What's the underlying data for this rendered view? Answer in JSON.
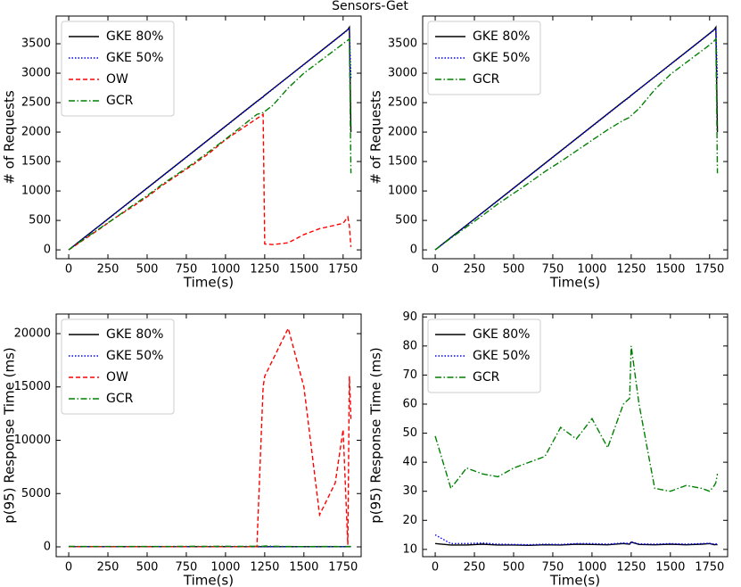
{
  "title": "Sensors-Get",
  "chart_data": [
    {
      "type": "line",
      "xlabel": "Time(s)",
      "ylabel": "# of Requests",
      "legend": "upper left",
      "x": [
        0,
        100,
        200,
        300,
        400,
        500,
        600,
        700,
        800,
        900,
        1000,
        1100,
        1200,
        1240,
        1250,
        1300,
        1400,
        1500,
        1600,
        1700,
        1750,
        1780,
        1790,
        1800
      ],
      "xlim": [
        -80,
        1865
      ],
      "ylim": [
        -150,
        3970
      ],
      "xticks": [
        0,
        250,
        500,
        750,
        1000,
        1250,
        1500,
        1750
      ],
      "yticks": [
        0,
        500,
        1000,
        1500,
        2000,
        2500,
        3000,
        3500
      ],
      "series": [
        {
          "name": "GKE 80%",
          "color": "#000000",
          "dash": "solid",
          "values": [
            0,
            210,
            420,
            630,
            840,
            1050,
            1260,
            1470,
            1680,
            1890,
            2100,
            2310,
            2520,
            2600,
            2625,
            2730,
            2940,
            3150,
            3360,
            3570,
            3675,
            3740,
            3780,
            2000
          ]
        },
        {
          "name": "GKE 50%",
          "color": "#0000ff",
          "dash": "dotted",
          "values": [
            0,
            208,
            416,
            625,
            835,
            1045,
            1255,
            1465,
            1675,
            1885,
            2095,
            2305,
            2515,
            2595,
            2620,
            2725,
            2935,
            3145,
            3355,
            3565,
            3670,
            3735,
            3760,
            2900
          ]
        },
        {
          "name": "OW",
          "color": "#ff0000",
          "dash": "dashed",
          "values": [
            0,
            180,
            360,
            550,
            720,
            900,
            1100,
            1280,
            1460,
            1650,
            1870,
            2050,
            2230,
            2300,
            100,
            90,
            120,
            260,
            360,
            420,
            450,
            560,
            400,
            50
          ]
        },
        {
          "name": "GCR",
          "color": "#008000",
          "dash": "dashdot",
          "values": [
            0,
            190,
            370,
            550,
            740,
            920,
            1120,
            1300,
            1480,
            1680,
            1880,
            2090,
            2300,
            2330,
            2350,
            2450,
            2750,
            3000,
            3200,
            3400,
            3500,
            3560,
            3580,
            1300
          ]
        }
      ]
    },
    {
      "type": "line",
      "xlabel": "Time(s)",
      "ylabel": "# of Requests",
      "legend": "upper left",
      "x": [
        0,
        100,
        200,
        300,
        400,
        500,
        600,
        700,
        800,
        900,
        1000,
        1100,
        1200,
        1240,
        1250,
        1300,
        1400,
        1500,
        1600,
        1700,
        1750,
        1780,
        1790,
        1800
      ],
      "xlim": [
        -80,
        1865
      ],
      "ylim": [
        -150,
        3970
      ],
      "xticks": [
        0,
        250,
        500,
        750,
        1000,
        1250,
        1500,
        1750
      ],
      "yticks": [
        0,
        500,
        1000,
        1500,
        2000,
        2500,
        3000,
        3500
      ],
      "series": [
        {
          "name": "GKE 80%",
          "color": "#000000",
          "dash": "solid",
          "values": [
            0,
            210,
            420,
            630,
            840,
            1050,
            1260,
            1470,
            1680,
            1890,
            2100,
            2310,
            2520,
            2600,
            2625,
            2730,
            2940,
            3150,
            3360,
            3570,
            3675,
            3740,
            3780,
            2000
          ]
        },
        {
          "name": "GKE 50%",
          "color": "#0000ff",
          "dash": "dotted",
          "values": [
            0,
            208,
            416,
            625,
            835,
            1045,
            1255,
            1465,
            1675,
            1885,
            2095,
            2305,
            2515,
            2595,
            2620,
            2725,
            2935,
            3145,
            3355,
            3565,
            3670,
            3735,
            3760,
            2900
          ]
        },
        {
          "name": "GCR",
          "color": "#008000",
          "dash": "dashdot",
          "values": [
            0,
            200,
            390,
            580,
            780,
            960,
            1140,
            1330,
            1500,
            1680,
            1860,
            2040,
            2200,
            2250,
            2280,
            2400,
            2720,
            2980,
            3180,
            3380,
            3480,
            3550,
            3580,
            1300
          ]
        }
      ]
    },
    {
      "type": "line",
      "xlabel": "Time(s)",
      "ylabel": "p(95) Response Time (ms)",
      "legend": "upper left",
      "x": [
        0,
        100,
        200,
        300,
        400,
        500,
        600,
        700,
        800,
        900,
        1000,
        1100,
        1200,
        1240,
        1250,
        1300,
        1400,
        1500,
        1600,
        1700,
        1750,
        1780,
        1790,
        1800
      ],
      "xlim": [
        -80,
        1865
      ],
      "ylim": [
        -920,
        21840
      ],
      "xticks": [
        0,
        250,
        500,
        750,
        1000,
        1250,
        1500,
        1750
      ],
      "yticks": [
        0,
        5000,
        10000,
        15000,
        20000
      ],
      "series": [
        {
          "name": "GKE 80%",
          "color": "#000000",
          "dash": "solid",
          "values": [
            12,
            12,
            12,
            12,
            12,
            12,
            12,
            12,
            12,
            12,
            12,
            12,
            12,
            12,
            12,
            12,
            12,
            12,
            12,
            12,
            12,
            12,
            12,
            12
          ]
        },
        {
          "name": "GKE 50%",
          "color": "#0000ff",
          "dash": "dotted",
          "values": [
            14,
            12,
            12,
            12,
            12,
            12,
            12,
            12,
            12,
            12,
            12,
            12,
            12,
            12,
            12,
            12,
            12,
            12,
            12,
            12,
            12,
            12,
            12,
            12
          ]
        },
        {
          "name": "OW",
          "color": "#ff0000",
          "dash": "dashed",
          "values": [
            20,
            20,
            20,
            20,
            20,
            20,
            20,
            20,
            20,
            20,
            20,
            20,
            20,
            15000,
            16000,
            17500,
            20500,
            15000,
            3000,
            6000,
            11000,
            200,
            16000,
            12000
          ]
        },
        {
          "name": "GCR",
          "color": "#008000",
          "dash": "dashdot",
          "values": [
            49,
            31,
            38,
            36,
            35,
            38,
            40,
            42,
            52,
            48,
            55,
            45,
            60,
            62,
            80,
            60,
            31,
            30,
            32,
            31,
            30,
            32,
            33,
            36
          ]
        }
      ]
    },
    {
      "type": "line",
      "xlabel": "Time(s)",
      "ylabel": "p(95) Response Time (ms)",
      "legend": "upper left",
      "x": [
        0,
        100,
        200,
        300,
        400,
        500,
        600,
        700,
        800,
        900,
        1000,
        1100,
        1200,
        1240,
        1250,
        1300,
        1400,
        1500,
        1600,
        1700,
        1750,
        1780,
        1790,
        1800
      ],
      "xlim": [
        -80,
        1865
      ],
      "ylim": [
        7.5,
        91
      ],
      "xticks": [
        0,
        250,
        500,
        750,
        1000,
        1250,
        1500,
        1750
      ],
      "yticks": [
        10,
        20,
        30,
        40,
        50,
        60,
        70,
        80,
        90
      ],
      "series": [
        {
          "name": "GKE 80%",
          "color": "#000000",
          "dash": "solid",
          "values": [
            12,
            11.5,
            11.5,
            11.8,
            11.5,
            11.5,
            11.4,
            11.6,
            11.5,
            11.8,
            11.7,
            11.6,
            12,
            11.8,
            12.5,
            11.7,
            11.6,
            11.8,
            11.6,
            11.8,
            12,
            11.6,
            11.7,
            11.6
          ]
        },
        {
          "name": "GKE 50%",
          "color": "#0000ff",
          "dash": "dotted",
          "values": [
            15,
            12,
            12,
            12.2,
            11.8,
            11.7,
            11.6,
            11.8,
            11.7,
            12,
            12,
            11.8,
            12.2,
            12,
            12.6,
            11.9,
            11.8,
            12,
            11.8,
            12,
            12.1,
            11.8,
            11.9,
            11.8
          ]
        },
        {
          "name": "GCR",
          "color": "#008000",
          "dash": "dashdot",
          "values": [
            49,
            31,
            38,
            36,
            35,
            38,
            40,
            42,
            52,
            48,
            55,
            45,
            60,
            62,
            80,
            60,
            31,
            30,
            32,
            31,
            30,
            32,
            33,
            36
          ]
        }
      ]
    }
  ]
}
